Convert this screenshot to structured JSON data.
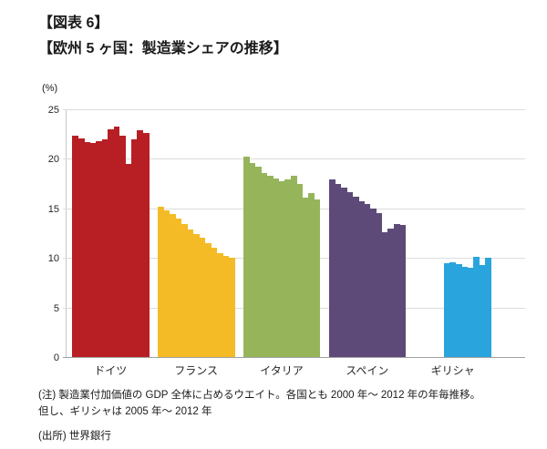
{
  "header": {
    "line1": "【図表 6】",
    "line2": "【欧州 5 ヶ国：製造業シェアの推移】"
  },
  "chart_data": {
    "type": "bar",
    "title": "欧州 5 ヶ国：製造業シェアの推移",
    "unit_label": "(%)",
    "ylabel": "",
    "xlabel": "",
    "ylim": [
      0,
      25
    ],
    "yticks": [
      0,
      5,
      10,
      15,
      20,
      25
    ],
    "grid": true,
    "legend": "none",
    "years": [
      2000,
      2001,
      2002,
      2003,
      2004,
      2005,
      2006,
      2007,
      2008,
      2009,
      2010,
      2011,
      2012
    ],
    "categories": [
      "ドイツ",
      "フランス",
      "イタリア",
      "スペイン",
      "ギリシャ"
    ],
    "series": [
      {
        "name": "ドイツ",
        "color": "#B81F24",
        "values": [
          22.3,
          22.1,
          21.7,
          21.6,
          21.8,
          22.0,
          23.0,
          23.3,
          22.3,
          19.5,
          22.0,
          22.9,
          22.6
        ]
      },
      {
        "name": "フランス",
        "color": "#F4BB26",
        "values": [
          15.2,
          14.8,
          14.4,
          14.0,
          13.4,
          12.9,
          12.4,
          12.0,
          11.5,
          11.0,
          10.5,
          10.2,
          10.0
        ]
      },
      {
        "name": "イタリア",
        "color": "#96B55B",
        "values": [
          20.2,
          19.6,
          19.2,
          18.6,
          18.3,
          18.0,
          17.7,
          17.9,
          18.3,
          17.5,
          16.1,
          16.5,
          15.9
        ]
      },
      {
        "name": "スペイン",
        "color": "#5D4A78",
        "values": [
          17.9,
          17.5,
          17.1,
          16.6,
          16.2,
          15.7,
          15.4,
          15.0,
          14.5,
          12.6,
          13.0,
          13.4,
          13.3
        ]
      },
      {
        "name": "ギリシャ",
        "color": "#29A4DC",
        "values": [
          null,
          null,
          null,
          null,
          null,
          9.5,
          9.6,
          9.4,
          9.1,
          9.0,
          10.1,
          9.3,
          10.0
        ]
      }
    ],
    "colors": {
      "gridline": "#dcdcdc",
      "axis_line": "#a0a0a0",
      "text": "#1a1a1a"
    }
  },
  "notes": {
    "note1": "(注) 製造業付加価値の GDP 全体に占めるウエイト。各国とも 2000 年～ 2012 年の年毎推移。",
    "note2": "但し、ギリシャは 2005 年～ 2012 年",
    "source": "(出所) 世界銀行"
  }
}
